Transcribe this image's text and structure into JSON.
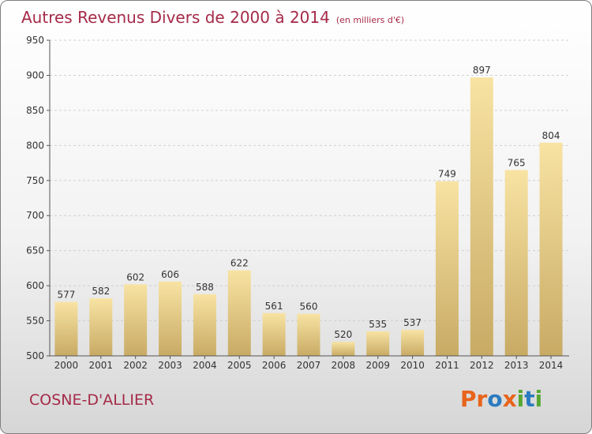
{
  "header": {
    "title": "Autres Revenus Divers de 2000 à 2014",
    "unit": "(en milliers d'€)"
  },
  "footer": {
    "commune": "COSNE-D'ALLIER",
    "logo": [
      "P",
      "r",
      "o",
      "x",
      "i",
      "t",
      "i"
    ],
    "logo_colors": [
      "#e8641b",
      "#e8641b",
      "#2b7bc0",
      "#e8641b",
      "#56a833",
      "#2b7bc0",
      "#56a833"
    ]
  },
  "colors": {
    "title": "#a52a48",
    "bar_top": "#f8e3a3",
    "bar_bottom": "#c8aa64",
    "grid": "#d0d0d0",
    "axis": "#555555"
  },
  "chart_data": {
    "type": "bar",
    "title": "Autres Revenus Divers de 2000 à 2014",
    "categories": [
      "2000",
      "2001",
      "2002",
      "2003",
      "2004",
      "2005",
      "2006",
      "2007",
      "2008",
      "2009",
      "2010",
      "2011",
      "2012",
      "2013",
      "2014"
    ],
    "values": [
      577,
      582,
      602,
      606,
      588,
      622,
      561,
      560,
      520,
      535,
      537,
      749,
      897,
      765,
      804
    ],
    "yticks": [
      500,
      550,
      600,
      650,
      700,
      750,
      800,
      850,
      900,
      950
    ],
    "ylim": [
      500,
      950
    ],
    "grid": true,
    "xlabel": "",
    "ylabel": ""
  }
}
